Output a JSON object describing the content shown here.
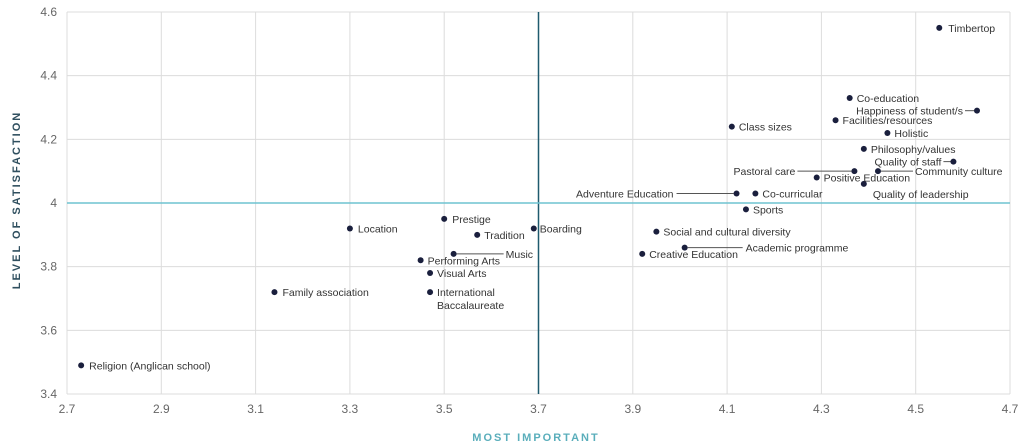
{
  "chart_data": {
    "type": "scatter",
    "title": "",
    "xlabel": "MOST IMPORTANT",
    "ylabel": "LEVEL OF SATISFACTION",
    "xlim": [
      2.7,
      4.7
    ],
    "ylim": [
      3.4,
      4.6
    ],
    "xticks": [
      "2.7",
      "2.9",
      "3.1",
      "3.3",
      "3.5",
      "3.7",
      "3.9",
      "4.1",
      "4.3",
      "4.5",
      "4.7"
    ],
    "yticks": [
      "3.4",
      "3.6",
      "3.8",
      "4",
      "4.2",
      "4.4",
      "4.6"
    ],
    "grid": true,
    "reference_lines": {
      "x": 3.7,
      "y": 4.0
    },
    "colors": {
      "point": "#1a1f3d",
      "vline": "#1f5a6e",
      "hline": "#6ec3d1",
      "grid": "#dcdcdc",
      "axis_title": "#5aaebb",
      "ylabel": "#2f4f5f"
    },
    "points": [
      {
        "label": "Timbertop",
        "x": 4.55,
        "y": 4.55
      },
      {
        "label": "Co-education",
        "x": 4.36,
        "y": 4.33
      },
      {
        "label": "Happiness of student/s",
        "x": 4.63,
        "y": 4.29
      },
      {
        "label": "Facilities/resources",
        "x": 4.33,
        "y": 4.26
      },
      {
        "label": "Class sizes",
        "x": 4.11,
        "y": 4.24
      },
      {
        "label": "Holistic",
        "x": 4.44,
        "y": 4.22
      },
      {
        "label": "Philosophy/values",
        "x": 4.39,
        "y": 4.17
      },
      {
        "label": "Quality of staff",
        "x": 4.58,
        "y": 4.13
      },
      {
        "label": "Community culture",
        "x": 4.42,
        "y": 4.1
      },
      {
        "label": "Pastoral care",
        "x": 4.37,
        "y": 4.1
      },
      {
        "label": "Positive Education",
        "x": 4.29,
        "y": 4.08
      },
      {
        "label": "Quality of leadership",
        "x": 4.39,
        "y": 4.06
      },
      {
        "label": "Adventure Education",
        "x": 4.12,
        "y": 4.03
      },
      {
        "label": "Co-curricular",
        "x": 4.16,
        "y": 4.03
      },
      {
        "label": "Sports",
        "x": 4.14,
        "y": 3.98
      },
      {
        "label": "Prestige",
        "x": 3.5,
        "y": 3.95
      },
      {
        "label": "Location",
        "x": 3.3,
        "y": 3.92
      },
      {
        "label": "Boarding",
        "x": 3.69,
        "y": 3.92
      },
      {
        "label": "Social and cultural diversity",
        "x": 3.95,
        "y": 3.91
      },
      {
        "label": "Tradition",
        "x": 3.57,
        "y": 3.9
      },
      {
        "label": "Academic programme",
        "x": 4.01,
        "y": 3.86
      },
      {
        "label": "Music",
        "x": 3.52,
        "y": 3.84
      },
      {
        "label": "Creative Education",
        "x": 3.92,
        "y": 3.84
      },
      {
        "label": "Performing Arts",
        "x": 3.45,
        "y": 3.82
      },
      {
        "label": "Visual Arts",
        "x": 3.47,
        "y": 3.78
      },
      {
        "label": "Family association",
        "x": 3.14,
        "y": 3.72
      },
      {
        "label": "International Baccalaureate",
        "x": 3.47,
        "y": 3.72
      },
      {
        "label": "Religion (Anglican school)",
        "x": 2.73,
        "y": 3.49
      }
    ]
  }
}
